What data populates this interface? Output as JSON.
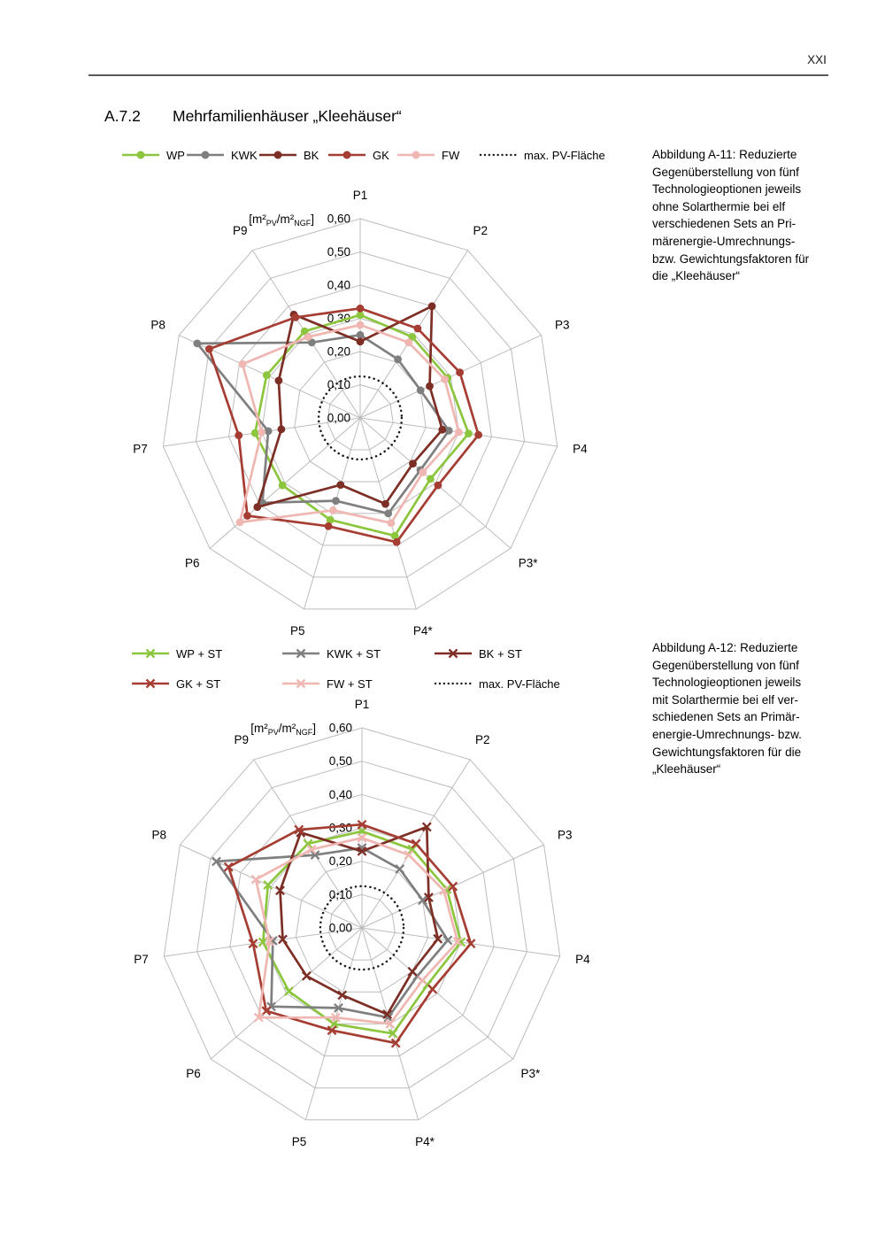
{
  "page": {
    "number": "XXI"
  },
  "heading": {
    "section": "A.7.2",
    "title": "Mehrfamilienhäuser „Kleehäuser“"
  },
  "figures": [
    {
      "id": "A-11",
      "legend": [
        {
          "label": "WP",
          "color": "#8CC63E",
          "marker": "circle"
        },
        {
          "label": "KWK",
          "color": "#7F7F7F",
          "marker": "circle"
        },
        {
          "label": "BK",
          "color": "#7D2E25",
          "marker": "circle"
        },
        {
          "label": "GK",
          "color": "#A63D33",
          "marker": "circle"
        },
        {
          "label": "FW",
          "color": "#F0B6B2",
          "marker": "circle"
        },
        {
          "label": "max. PV-Fläche",
          "color": "#1A1A1A",
          "marker": "dotted"
        }
      ],
      "caption_lines": [
        "Abbildung A-11: Reduzierte",
        "Gegenüberstellung von fünf",
        "Technologieoptionen jeweils",
        "ohne Solarthermie bei elf",
        "verschiedenen Sets an Pri-",
        "märenergie-Umrechnungs-",
        "bzw. Gewichtungsfaktoren für",
        "die „Kleehäuser“"
      ]
    },
    {
      "id": "A-12",
      "legend": [
        {
          "label": "WP + ST",
          "color": "#8CC63E",
          "marker": "x"
        },
        {
          "label": "KWK + ST",
          "color": "#7F7F7F",
          "marker": "x"
        },
        {
          "label": "BK + ST",
          "color": "#7D2E25",
          "marker": "x"
        },
        {
          "label": "GK + ST",
          "color": "#A63D33",
          "marker": "x"
        },
        {
          "label": "FW + ST",
          "color": "#F0B6B2",
          "marker": "x"
        },
        {
          "label": "max. PV-Fläche",
          "color": "#1A1A1A",
          "marker": "dotted"
        }
      ],
      "caption_lines": [
        "Abbildung A-12: Reduzierte",
        "Gegenüberstellung von fünf",
        "Technologieoptionen jeweils",
        "mit Solarthermie bei elf ver-",
        "schiedenen Sets an Primär-",
        "energie-Umrechnungs- bzw.",
        "Gewichtungsfaktoren für die",
        "„Kleehäuser“"
      ]
    }
  ],
  "chart_data": [
    {
      "type": "radar",
      "figure": "Abbildung A-11",
      "unit_label": "[m²PV/m²NGF]",
      "unit_parts": {
        "pre": "[m²",
        "sub1": "PV",
        "mid": "/m²",
        "sub2": "NGF",
        "post": "]"
      },
      "categories": [
        "P1",
        "P2",
        "P3",
        "P4",
        "P3*",
        "P4*",
        "P5",
        "P6",
        "P7",
        "P8",
        "P9"
      ],
      "rlim": [
        0,
        0.6
      ],
      "tick_step": 0.1,
      "tick_labels": [
        "0,00",
        "0,10",
        "0,20",
        "0,30",
        "0,40",
        "0,50",
        "0,60"
      ],
      "grid": true,
      "legend_position": "top",
      "series": [
        {
          "name": "WP",
          "color": "#8CC63E",
          "marker": "circle",
          "values": [
            0.31,
            0.29,
            0.29,
            0.33,
            0.28,
            0.37,
            0.32,
            0.31,
            0.32,
            0.31,
            0.31
          ]
        },
        {
          "name": "KWK",
          "color": "#7F7F7F",
          "marker": "circle",
          "values": [
            0.25,
            0.21,
            0.2,
            0.27,
            0.24,
            0.3,
            0.26,
            0.39,
            0.28,
            0.54,
            0.27
          ]
        },
        {
          "name": "BK",
          "color": "#7D2E25",
          "marker": "circle",
          "values": [
            0.23,
            0.4,
            0.23,
            0.25,
            0.21,
            0.27,
            0.21,
            0.41,
            0.24,
            0.27,
            0.37
          ]
        },
        {
          "name": "GK",
          "color": "#A63D33",
          "marker": "circle",
          "values": [
            0.33,
            0.32,
            0.33,
            0.36,
            0.31,
            0.39,
            0.34,
            0.45,
            0.37,
            0.5,
            0.36
          ]
        },
        {
          "name": "FW",
          "color": "#F0B6B2",
          "marker": "circle",
          "values": [
            0.28,
            0.27,
            0.28,
            0.3,
            0.25,
            0.33,
            0.29,
            0.48,
            0.3,
            0.39,
            0.29
          ]
        }
      ],
      "reference_circle": {
        "name": "max. PV-Fläche",
        "value": 0.125,
        "style": "dotted",
        "color": "#1A1A1A"
      }
    },
    {
      "type": "radar",
      "figure": "Abbildung A-12",
      "unit_label": "[m²PV/m²NGF]",
      "unit_parts": {
        "pre": "[m²",
        "sub1": "PV",
        "mid": "/m²",
        "sub2": "NGF",
        "post": "]"
      },
      "categories": [
        "P1",
        "P2",
        "P3",
        "P4",
        "P3*",
        "P4*",
        "P5",
        "P6",
        "P7",
        "P8",
        "P9"
      ],
      "rlim": [
        0,
        0.6
      ],
      "tick_step": 0.1,
      "tick_labels": [
        "0,00",
        "0,10",
        "0,20",
        "0,30",
        "0,40",
        "0,50",
        "0,60"
      ],
      "grid": true,
      "legend_position": "top",
      "series": [
        {
          "name": "WP + ST",
          "color": "#8CC63E",
          "marker": "x",
          "values": [
            0.29,
            0.28,
            0.28,
            0.3,
            0.26,
            0.33,
            0.3,
            0.29,
            0.3,
            0.31,
            0.3
          ]
        },
        {
          "name": "KWK + ST",
          "color": "#7F7F7F",
          "marker": "x",
          "values": [
            0.24,
            0.21,
            0.2,
            0.26,
            0.22,
            0.28,
            0.25,
            0.36,
            0.27,
            0.48,
            0.26
          ]
        },
        {
          "name": "BK + ST",
          "color": "#7D2E25",
          "marker": "x",
          "values": [
            0.23,
            0.36,
            0.22,
            0.23,
            0.2,
            0.27,
            0.21,
            0.22,
            0.24,
            0.27,
            0.34
          ]
        },
        {
          "name": "GK + ST",
          "color": "#A63D33",
          "marker": "x",
          "values": [
            0.31,
            0.3,
            0.3,
            0.33,
            0.28,
            0.36,
            0.32,
            0.38,
            0.33,
            0.44,
            0.35
          ]
        },
        {
          "name": "FW + ST",
          "color": "#F0B6B2",
          "marker": "x",
          "values": [
            0.27,
            0.26,
            0.27,
            0.29,
            0.24,
            0.3,
            0.28,
            0.41,
            0.28,
            0.35,
            0.28
          ]
        }
      ],
      "reference_circle": {
        "name": "max. PV-Fläche",
        "value": 0.125,
        "style": "dotted",
        "color": "#1A1A1A"
      }
    }
  ]
}
